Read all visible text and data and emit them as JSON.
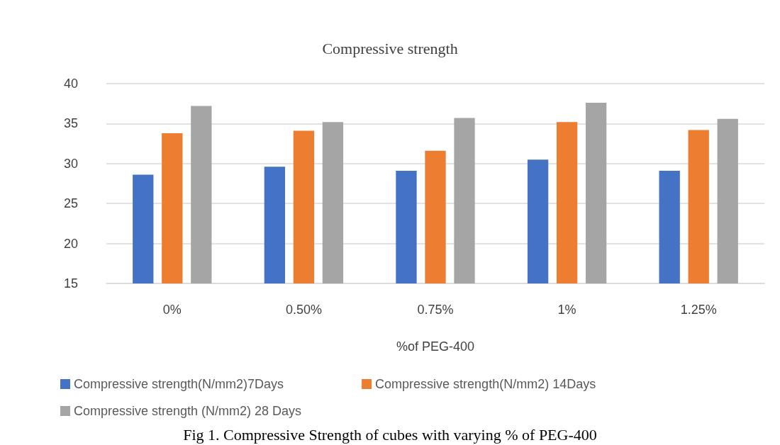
{
  "chart_data": {
    "type": "bar",
    "title": "Compressive strength",
    "xlabel": "%of PEG-400",
    "categories": [
      "0%",
      "0.50%",
      "0.75%",
      "1%",
      "1.25%"
    ],
    "series": [
      {
        "name": "Compressive strength(N/mm2)7Days",
        "color": "#4472c4",
        "values": [
          28.6,
          29.6,
          29.1,
          30.5,
          29.1
        ]
      },
      {
        "name": "Compressive strength(N/mm2) 14Days",
        "color": "#ed7d31",
        "values": [
          33.8,
          34.1,
          31.6,
          35.2,
          34.2
        ]
      },
      {
        "name": "Compressive strength (N/mm2) 28 Days",
        "color": "#a5a5a5",
        "values": [
          37.2,
          35.2,
          35.7,
          37.6,
          35.6
        ]
      }
    ],
    "ylim": [
      15,
      40
    ],
    "yticks": [
      15,
      20,
      25,
      30,
      35,
      40
    ],
    "grid": "y",
    "legend": "bottom",
    "annotations": [
      "Fig 1. Compressive Strength of cubes with varying % of PEG-400"
    ]
  }
}
